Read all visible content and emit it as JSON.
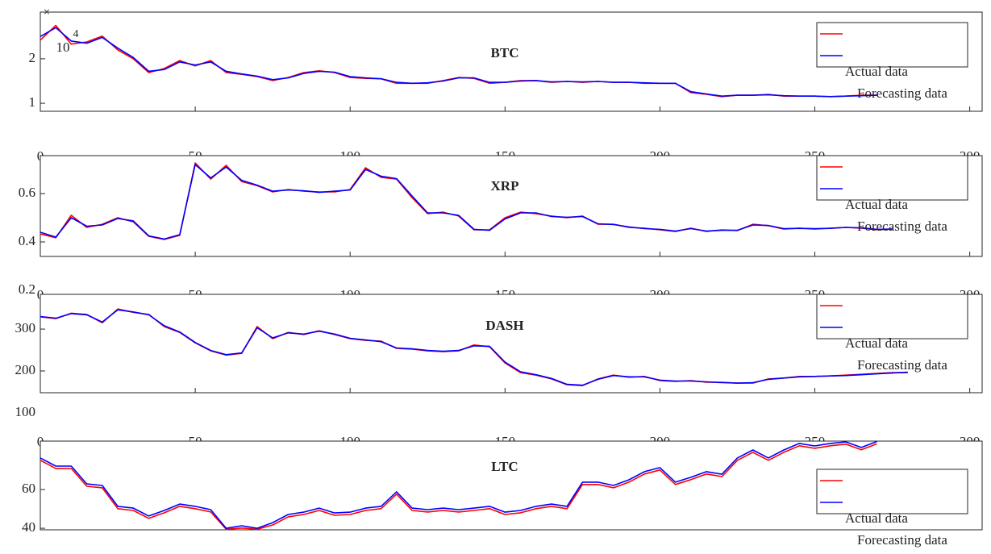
{
  "chart_data": [
    {
      "type": "line",
      "title": "BTC",
      "y_multiplier": [
        "×",
        "10",
        "4"
      ],
      "x": [
        0,
        5,
        10,
        15,
        20,
        25,
        30,
        35,
        40,
        45,
        50,
        55,
        60,
        65,
        70,
        75,
        80,
        85,
        90,
        95,
        100,
        105,
        110,
        115,
        120,
        125,
        130,
        135,
        140,
        145,
        150,
        155,
        160,
        165,
        170,
        175,
        180,
        185,
        190,
        195,
        200,
        205,
        210,
        215,
        220,
        225,
        230,
        235,
        240,
        245,
        250,
        255,
        260,
        265,
        270
      ],
      "series": [
        {
          "name": "Actual data",
          "color": "#ff0000",
          "values": [
            2.42,
            2.75,
            2.33,
            2.38,
            2.51,
            2.2,
            2.0,
            1.69,
            1.78,
            1.96,
            1.84,
            1.96,
            1.69,
            1.65,
            1.6,
            1.51,
            1.58,
            1.69,
            1.73,
            1.69,
            1.58,
            1.56,
            1.55,
            1.45,
            1.45,
            1.45,
            1.51,
            1.58,
            1.56,
            1.45,
            1.47,
            1.51,
            1.51,
            1.47,
            1.49,
            1.47,
            1.49,
            1.47,
            1.47,
            1.45,
            1.45,
            1.45,
            1.24,
            1.2,
            1.15,
            1.18,
            1.18,
            1.2,
            1.16,
            1.16,
            1.16,
            1.15,
            1.16,
            1.18,
            1.18
          ]
        },
        {
          "name": "Forecasting data",
          "color": "#0000ff",
          "values": [
            2.5,
            2.7,
            2.4,
            2.35,
            2.48,
            2.24,
            2.03,
            1.72,
            1.76,
            1.93,
            1.86,
            1.93,
            1.72,
            1.66,
            1.61,
            1.53,
            1.57,
            1.67,
            1.72,
            1.7,
            1.6,
            1.57,
            1.55,
            1.47,
            1.45,
            1.46,
            1.5,
            1.57,
            1.57,
            1.47,
            1.47,
            1.5,
            1.51,
            1.48,
            1.49,
            1.48,
            1.49,
            1.47,
            1.47,
            1.46,
            1.45,
            1.45,
            1.26,
            1.21,
            1.16,
            1.18,
            1.18,
            1.19,
            1.17,
            1.16,
            1.16,
            1.15,
            1.16,
            1.17,
            1.18
          ]
        }
      ],
      "xlim": [
        0,
        304
      ],
      "xticks": [
        0,
        50,
        100,
        150,
        200,
        250,
        300
      ],
      "ylim": [
        0.82,
        3.05
      ],
      "yticks": [
        1,
        2
      ],
      "legend": "northeast"
    },
    {
      "type": "line",
      "title": "XRP",
      "x": [
        0,
        5,
        10,
        15,
        20,
        25,
        30,
        35,
        40,
        45,
        50,
        55,
        60,
        65,
        70,
        75,
        80,
        85,
        90,
        95,
        100,
        105,
        110,
        115,
        120,
        125,
        130,
        135,
        140,
        145,
        150,
        155,
        160,
        165,
        170,
        175,
        180,
        185,
        190,
        195,
        200,
        205,
        210,
        215,
        220,
        225,
        230,
        235,
        240,
        245,
        250,
        255,
        260,
        265,
        270,
        275
      ],
      "series": [
        {
          "name": "Actual data",
          "color": "#ff0000",
          "values": [
            0.433,
            0.417,
            0.51,
            0.46,
            0.473,
            0.5,
            0.483,
            0.423,
            0.41,
            0.427,
            0.727,
            0.66,
            0.717,
            0.65,
            0.633,
            0.607,
            0.617,
            0.61,
            0.607,
            0.607,
            0.617,
            0.707,
            0.667,
            0.66,
            0.583,
            0.517,
            0.523,
            0.507,
            0.45,
            0.45,
            0.5,
            0.523,
            0.517,
            0.507,
            0.5,
            0.507,
            0.473,
            0.473,
            0.46,
            0.457,
            0.45,
            0.443,
            0.457,
            0.443,
            0.45,
            0.447,
            0.473,
            0.467,
            0.453,
            0.457,
            0.453,
            0.457,
            0.46,
            0.457,
            0.45,
            0.453
          ]
        },
        {
          "name": "Forecasting data",
          "color": "#0000ff",
          "values": [
            0.44,
            0.42,
            0.5,
            0.465,
            0.47,
            0.497,
            0.487,
            0.425,
            0.412,
            0.43,
            0.72,
            0.665,
            0.71,
            0.655,
            0.635,
            0.61,
            0.615,
            0.612,
            0.605,
            0.61,
            0.615,
            0.7,
            0.672,
            0.662,
            0.59,
            0.52,
            0.52,
            0.51,
            0.452,
            0.448,
            0.495,
            0.52,
            0.52,
            0.505,
            0.502,
            0.505,
            0.475,
            0.472,
            0.462,
            0.455,
            0.452,
            0.445,
            0.455,
            0.445,
            0.448,
            0.448,
            0.47,
            0.468,
            0.455,
            0.456,
            0.455,
            0.456,
            0.46,
            0.458,
            0.452,
            0.453
          ]
        }
      ],
      "xlim": [
        0,
        304
      ],
      "xticks": [
        0,
        50,
        100,
        150,
        200,
        250,
        300
      ],
      "ylim": [
        0.34,
        0.757
      ],
      "yticks": [
        0.2,
        0.4,
        0.6
      ],
      "legend": "northeast"
    },
    {
      "type": "line",
      "title": "DASH",
      "x": [
        0,
        5,
        10,
        15,
        20,
        25,
        30,
        35,
        40,
        45,
        50,
        55,
        60,
        65,
        70,
        75,
        80,
        85,
        90,
        95,
        100,
        105,
        110,
        115,
        120,
        125,
        130,
        135,
        140,
        145,
        150,
        155,
        160,
        165,
        170,
        175,
        180,
        185,
        190,
        195,
        200,
        205,
        210,
        215,
        220,
        225,
        230,
        235,
        240,
        245,
        250,
        255,
        260,
        265,
        270,
        275,
        280
      ],
      "series": [
        {
          "name": "Actual data",
          "color": "#ff0000",
          "values": [
            329,
            325,
            338,
            335,
            315,
            348,
            340,
            335,
            306,
            292,
            267,
            248,
            238,
            242,
            306,
            277,
            292,
            287,
            296,
            287,
            277,
            273,
            271,
            254,
            252,
            248,
            246,
            248,
            262,
            258,
            219,
            196,
            190,
            181,
            167,
            165,
            181,
            190,
            185,
            187,
            177,
            175,
            177,
            173,
            173,
            171,
            171,
            181,
            183,
            187,
            187,
            188,
            190,
            192,
            194,
            196,
            196
          ]
        },
        {
          "name": "Forecasting data",
          "color": "#0000ff",
          "values": [
            330,
            326,
            337,
            334,
            317,
            346,
            341,
            334,
            308,
            293,
            268,
            249,
            239,
            243,
            303,
            279,
            291,
            288,
            295,
            288,
            278,
            274,
            270,
            255,
            253,
            249,
            247,
            249,
            260,
            259,
            221,
            198,
            191,
            182,
            168,
            166,
            180,
            189,
            186,
            186,
            178,
            176,
            176,
            174,
            172,
            171,
            172,
            180,
            183,
            186,
            187,
            188,
            189,
            191,
            193,
            195,
            197
          ]
        }
      ],
      "xlim": [
        0,
        304
      ],
      "xticks": [
        0,
        50,
        100,
        150,
        200,
        250,
        300
      ],
      "ylim": [
        148,
        383
      ],
      "yticks": [
        100,
        200,
        300
      ],
      "legend": "northeast"
    },
    {
      "type": "line",
      "title": "LTC",
      "x": [
        0,
        5,
        10,
        15,
        20,
        25,
        30,
        35,
        40,
        45,
        50,
        55,
        60,
        65,
        70,
        75,
        80,
        85,
        90,
        95,
        100,
        105,
        110,
        115,
        120,
        125,
        130,
        135,
        140,
        145,
        150,
        155,
        160,
        165,
        170,
        175,
        180,
        185,
        190,
        195,
        200,
        205,
        210,
        215,
        220,
        225,
        230,
        235,
        240,
        245,
        250,
        255,
        260,
        265,
        270
      ],
      "series": [
        {
          "name": "Actual data",
          "color": "#ff0000",
          "values": [
            75.1,
            70.9,
            70.9,
            61.7,
            60.9,
            50.1,
            49.2,
            45.1,
            48,
            51.3,
            50.1,
            48.4,
            39.5,
            40.1,
            39.5,
            41.7,
            45.9,
            47.1,
            49.2,
            46.7,
            47.1,
            49.2,
            50.1,
            57.6,
            49.2,
            48.4,
            49.2,
            48.4,
            49.2,
            50.1,
            47.1,
            48,
            50.1,
            51.3,
            50.1,
            62.6,
            62.6,
            60.9,
            63.8,
            68,
            70.1,
            62.6,
            65.1,
            68,
            66.7,
            75.1,
            79.2,
            75.1,
            79.2,
            82.6,
            81.3,
            82.6,
            83.4,
            80.5,
            83.6
          ]
        },
        {
          "name": "Forecasting data",
          "color": "#0000ff",
          "values": [
            76.3,
            72.1,
            72.1,
            62.9,
            62.1,
            51.3,
            50.4,
            46.3,
            49.2,
            52.5,
            51.3,
            49.6,
            40,
            41.3,
            40,
            42.9,
            47.1,
            48.3,
            50.4,
            47.9,
            48.3,
            50.4,
            51.3,
            58.8,
            50.4,
            49.6,
            50.4,
            49.6,
            50.4,
            51.3,
            48.3,
            49.2,
            51.3,
            52.5,
            51.3,
            63.8,
            63.8,
            62.1,
            65,
            69.2,
            71.3,
            63.8,
            66.3,
            69.2,
            67.9,
            76.3,
            80.4,
            76.3,
            80.4,
            83.8,
            82.5,
            83.8,
            84.6,
            81.7,
            84.8
          ]
        }
      ],
      "xlim": [
        0,
        304
      ],
      "ylim": [
        39.2,
        85
      ],
      "yticks": [
        40,
        60
      ],
      "legend": "northeast"
    }
  ]
}
